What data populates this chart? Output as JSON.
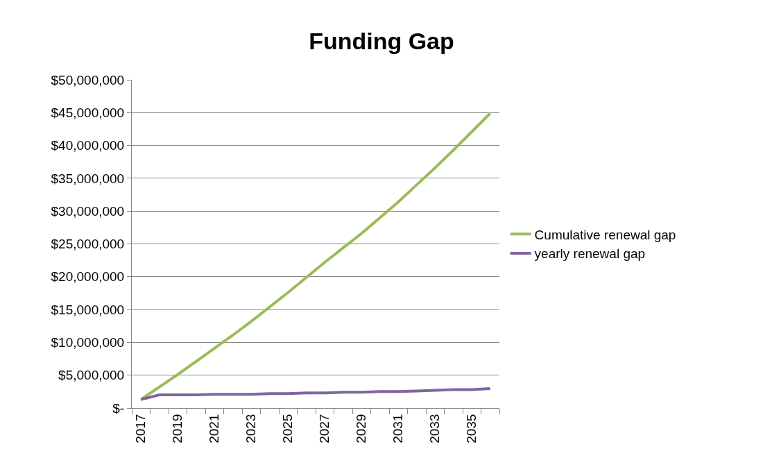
{
  "chart_data": {
    "type": "line",
    "title": "Funding Gap",
    "categories": [
      "2017",
      null,
      "2019",
      null,
      "2021",
      null,
      "2023",
      null,
      "2025",
      null,
      "2027",
      null,
      "2029",
      null,
      "2031",
      null,
      "2033",
      null,
      "2035",
      null
    ],
    "series": [
      {
        "name": "Cumulative renewal gap",
        "color": "#9bbb59",
        "values": [
          1300000,
          3200000,
          5100000,
          7100000,
          9100000,
          11100000,
          13200000,
          15400000,
          17600000,
          19900000,
          22200000,
          24400000,
          26600000,
          29000000,
          31400000,
          34000000,
          36600000,
          39300000,
          42100000,
          44900000
        ]
      },
      {
        "name": "yearly renewal gap",
        "color": "#8064a2",
        "values": [
          1300000,
          2000000,
          2000000,
          2000000,
          2100000,
          2100000,
          2100000,
          2200000,
          2200000,
          2300000,
          2300000,
          2400000,
          2400000,
          2500000,
          2500000,
          2600000,
          2700000,
          2800000,
          2800000,
          2950000
        ]
      }
    ],
    "ylim": [
      0,
      50000000
    ],
    "yticks": [
      {
        "value": 0,
        "label": "$-"
      },
      {
        "value": 5000000,
        "label": "$5,000,000"
      },
      {
        "value": 10000000,
        "label": "$10,000,000"
      },
      {
        "value": 15000000,
        "label": "$15,000,000"
      },
      {
        "value": 20000000,
        "label": "$20,000,000"
      },
      {
        "value": 25000000,
        "label": "$25,000,000"
      },
      {
        "value": 30000000,
        "label": "$30,000,000"
      },
      {
        "value": 35000000,
        "label": "$35,000,000"
      },
      {
        "value": 40000000,
        "label": "$40,000,000"
      },
      {
        "value": 45000000,
        "label": "$45,000,000"
      },
      {
        "value": 50000000,
        "label": "$50,000,000"
      }
    ],
    "grid": "y",
    "legend": "right",
    "marker": "none",
    "line_style": "solid"
  }
}
